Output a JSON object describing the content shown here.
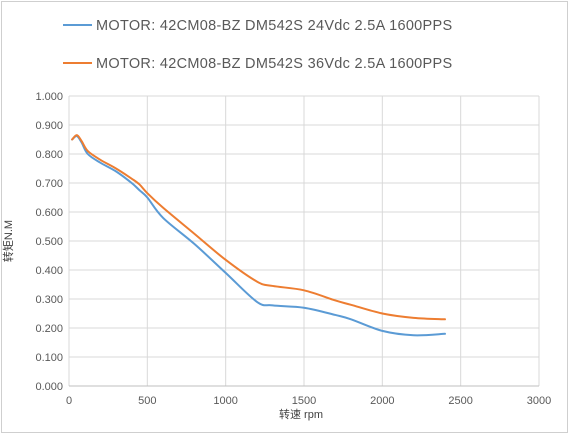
{
  "chart_data": {
    "type": "line",
    "xlabel": "转速 rpm",
    "ylabel": "转矩N.M",
    "xlim": [
      0,
      3000
    ],
    "ylim": [
      0,
      1.0
    ],
    "x_ticks": [
      "0",
      "500",
      "1000",
      "1500",
      "2000",
      "2500",
      "3000"
    ],
    "y_ticks": [
      "0.000",
      "0.100",
      "0.200",
      "0.300",
      "0.400",
      "0.500",
      "0.600",
      "0.700",
      "0.800",
      "0.900",
      "1.000"
    ],
    "grid": true,
    "legend_position": "top",
    "series": [
      {
        "name": "MOTOR: 42CM08-BZ  DM542S  24Vdc  2.5A  1600PPS",
        "color": "#5b9bd5",
        "x": [
          20,
          50,
          80,
          120,
          200,
          300,
          400,
          450,
          500,
          600,
          800,
          1000,
          1200,
          1300,
          1500,
          1700,
          1800,
          2000,
          2200,
          2400
        ],
        "y": [
          0.85,
          0.862,
          0.84,
          0.8,
          0.77,
          0.74,
          0.7,
          0.675,
          0.65,
          0.58,
          0.49,
          0.39,
          0.29,
          0.278,
          0.27,
          0.245,
          0.23,
          0.19,
          0.175,
          0.18
        ]
      },
      {
        "name": "MOTOR: 42CM08-BZ  DM542S  36Vdc  2.5A  1600PPS",
        "color": "#ed7d31",
        "x": [
          20,
          50,
          80,
          120,
          200,
          300,
          400,
          450,
          500,
          600,
          800,
          1000,
          1200,
          1300,
          1500,
          1700,
          1800,
          2000,
          2200,
          2400
        ],
        "y": [
          0.85,
          0.865,
          0.845,
          0.81,
          0.78,
          0.75,
          0.715,
          0.695,
          0.665,
          0.615,
          0.525,
          0.435,
          0.36,
          0.345,
          0.33,
          0.295,
          0.28,
          0.25,
          0.235,
          0.23
        ]
      }
    ]
  }
}
